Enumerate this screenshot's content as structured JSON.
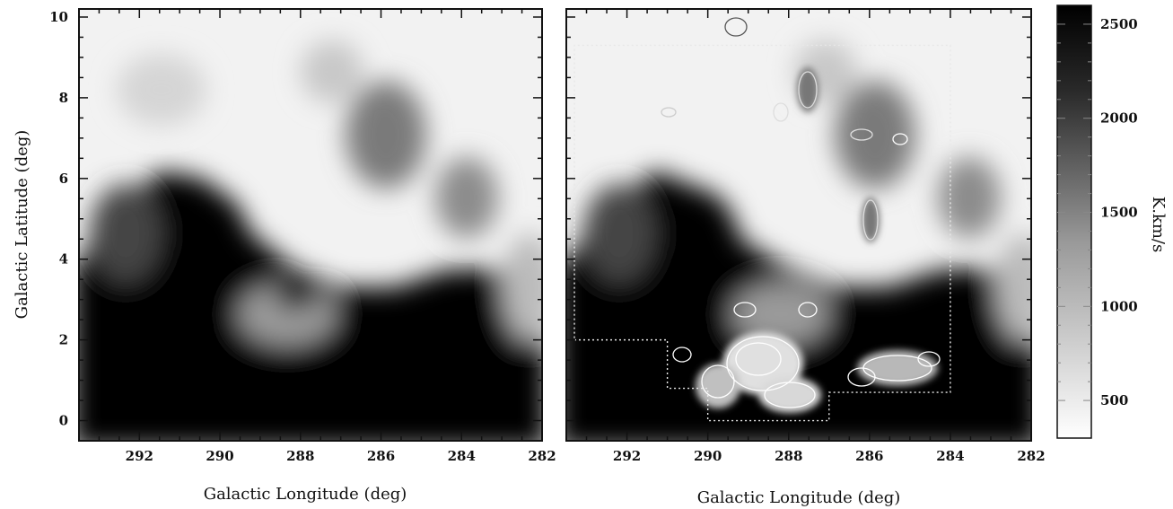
{
  "chart_data": [
    {
      "type": "heatmap",
      "panel": "left",
      "xlabel": "Galactic Longitude (deg)",
      "ylabel": "Galactic Latitude (deg)",
      "xlim": [
        293.5,
        282
      ],
      "ylim": [
        -0.5,
        10.2
      ],
      "x_ticks": [
        "292",
        "290",
        "288",
        "286",
        "284",
        "282"
      ],
      "y_ticks": [
        "0",
        "2",
        "4",
        "6",
        "8",
        "10"
      ],
      "x_tick_values": [
        292,
        290,
        288,
        286,
        284,
        282
      ],
      "y_tick_values": [
        0,
        2,
        4,
        6,
        8,
        10
      ],
      "colormap": "grayscale, white = low, black = high"
    },
    {
      "type": "heatmap",
      "panel": "right",
      "xlabel": "Galactic Longitude (deg)",
      "ylabel": "",
      "xlim": [
        293.5,
        282
      ],
      "ylim": [
        -0.5,
        10.2
      ],
      "x_ticks": [
        "292",
        "290",
        "288",
        "286",
        "284",
        "282"
      ],
      "x_tick_values": [
        292,
        290,
        288,
        286,
        284,
        282
      ],
      "overlay": "white contours + dotted survey outline",
      "survey_outline": [
        [
          293.3,
          2
        ],
        [
          291,
          2
        ],
        [
          291,
          0.8
        ],
        [
          290,
          0.8
        ],
        [
          290,
          0
        ],
        [
          287,
          0
        ],
        [
          287,
          0.7
        ],
        [
          284,
          0.7
        ],
        [
          284,
          9.3
        ],
        [
          293.3,
          9.3
        ]
      ]
    }
  ],
  "colorbar": {
    "label": "K.km/s",
    "tick_labels": [
      "2500",
      "2000",
      "1500",
      "1000",
      "500"
    ],
    "tick_values": [
      2500,
      2000,
      1500,
      1000,
      500
    ],
    "range": [
      300,
      2600
    ]
  }
}
